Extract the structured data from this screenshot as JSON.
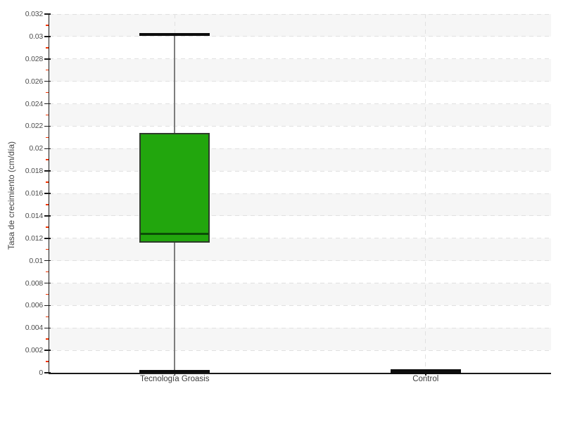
{
  "figure": {
    "background": "#ffffff"
  },
  "y_axis": {
    "title": "Tasa de crecimiento (cm/día)",
    "min": 0,
    "max": 0.032,
    "major_step": 0.002,
    "minor_step": 0.001,
    "tick_labels": [
      "0",
      "0.002",
      "0.004",
      "0.006",
      "0.008",
      "0.01",
      "0.012",
      "0.014",
      "0.016",
      "0.018",
      "0.02",
      "0.022",
      "0.024",
      "0.026",
      "0.028",
      "0.03",
      "0.032"
    ]
  },
  "x_axis": {
    "categories": [
      "Tecnología Groasis",
      "Control"
    ]
  },
  "chart_data": {
    "type": "box",
    "title": "",
    "xlabel": "",
    "ylabel": "Tasa de crecimiento (cm/día)",
    "categories": [
      "Tecnología Groasis",
      "Control"
    ],
    "ylim": [
      0,
      0.032
    ],
    "grid": "horizontal dashed gridlines every 0.002, alternating shaded bands, dashed vertical line at each category",
    "legend": "none",
    "series": [
      {
        "name": "Tecnología Groasis",
        "min": 0.0001,
        "q1": 0.0116,
        "median": 0.0124,
        "q3": 0.0214,
        "max": 0.0302,
        "fill": "#22a60d",
        "border": "#2f3b2c",
        "median_color": "#0b4d06"
      },
      {
        "name": "Control",
        "min": 0,
        "q1": 0.0001,
        "median": 0.0001,
        "q3": 0.0002,
        "max": 0.0002,
        "fill": "#0d0d0d",
        "border": "#0d0d0d",
        "median_color": "#0d0d0d"
      }
    ]
  },
  "colors": {
    "band": "#f6f6f6",
    "grid": "#e1e1e1",
    "axis": "#1a1a1a",
    "major_tick": "#1a1a1a",
    "minor_tick": "#f23300",
    "tick_label": "#4d4d4d",
    "category_label": "#3d3d3d",
    "whisker_line": "#7d7d7d",
    "cap": "#0d0d0d"
  }
}
